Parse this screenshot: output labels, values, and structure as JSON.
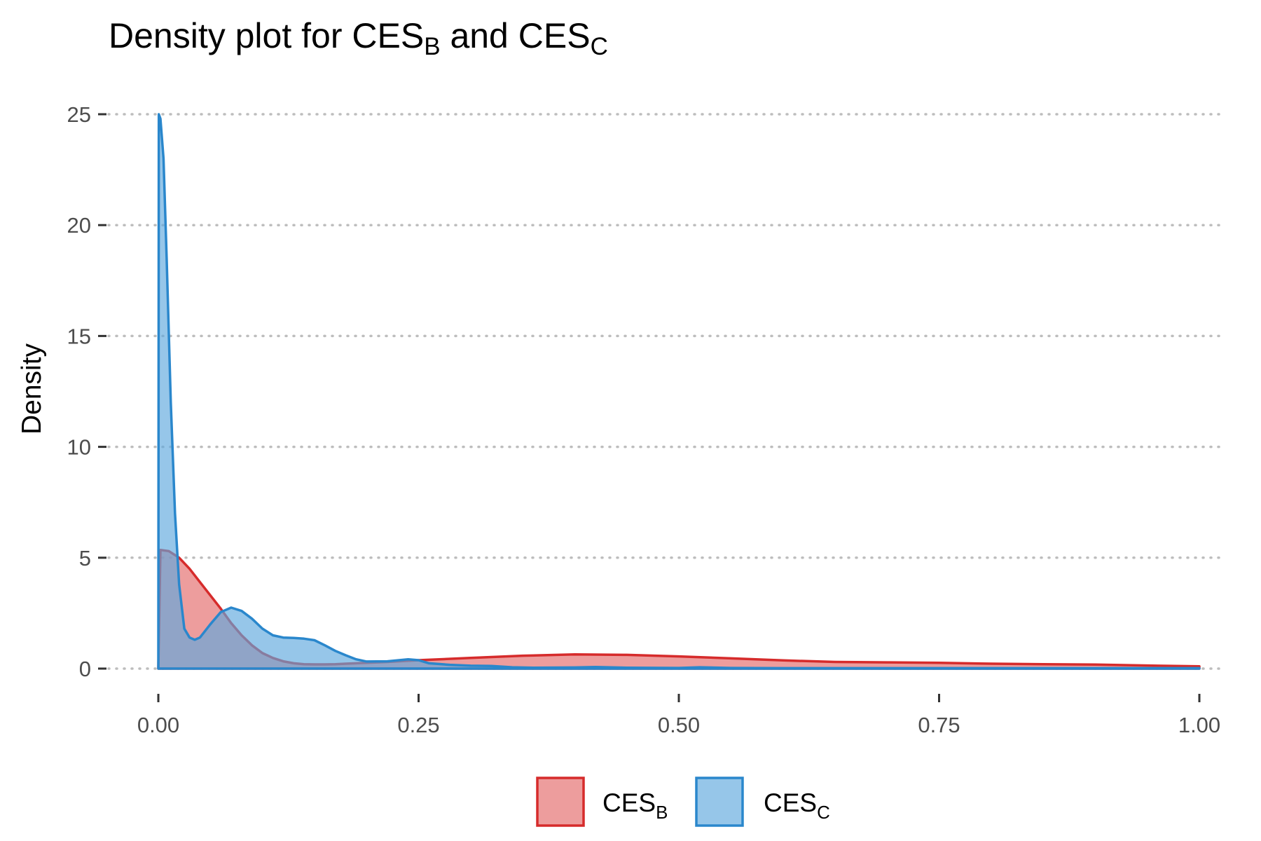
{
  "chart_data": {
    "type": "area",
    "title": {
      "prefix": "Density plot for ",
      "series1_base": "CES",
      "series1_sub": "B",
      "connector": " and ",
      "series2_base": "CES",
      "series2_sub": "C"
    },
    "xlabel": "",
    "ylabel": "Density",
    "xlim": [
      0,
      1
    ],
    "ylim": [
      0,
      25
    ],
    "x_ticks": [
      0,
      0.25,
      0.5,
      0.75,
      1.0
    ],
    "x_tick_labels": [
      "0.00",
      "0.25",
      "0.50",
      "0.75",
      "1.00"
    ],
    "y_ticks": [
      0,
      5,
      10,
      15,
      20,
      25
    ],
    "y_tick_labels": [
      "0",
      "5",
      "10",
      "15",
      "20",
      "25"
    ],
    "grid": "horizontal dotted",
    "legend_position": "bottom",
    "series": [
      {
        "name_base": "CES",
        "name_sub": "B",
        "line_color": "#d62b2b",
        "fill_color": "#e57373",
        "fill_opacity": 0.7,
        "x": [
          0,
          0.002,
          0.01,
          0.02,
          0.03,
          0.04,
          0.05,
          0.06,
          0.07,
          0.08,
          0.09,
          0.1,
          0.11,
          0.12,
          0.13,
          0.14,
          0.15,
          0.16,
          0.17,
          0.18,
          0.2,
          0.22,
          0.25,
          0.3,
          0.35,
          0.4,
          0.45,
          0.5,
          0.55,
          0.6,
          0.65,
          0.7,
          0.75,
          0.8,
          0.85,
          0.9,
          0.95,
          1.0
        ],
        "y": [
          0,
          5.35,
          5.3,
          5.0,
          4.5,
          3.9,
          3.3,
          2.7,
          2.05,
          1.5,
          1.05,
          0.7,
          0.48,
          0.33,
          0.24,
          0.2,
          0.19,
          0.19,
          0.2,
          0.22,
          0.26,
          0.3,
          0.38,
          0.48,
          0.58,
          0.64,
          0.62,
          0.55,
          0.46,
          0.37,
          0.3,
          0.28,
          0.26,
          0.22,
          0.2,
          0.18,
          0.14,
          0.1
        ]
      },
      {
        "name_base": "CES",
        "name_sub": "C",
        "line_color": "#2a87cc",
        "fill_color": "#5ea7dd",
        "fill_opacity": 0.65,
        "x": [
          0,
          0.0005,
          0.002,
          0.005,
          0.008,
          0.012,
          0.016,
          0.02,
          0.025,
          0.03,
          0.035,
          0.04,
          0.05,
          0.06,
          0.07,
          0.08,
          0.09,
          0.1,
          0.11,
          0.12,
          0.13,
          0.14,
          0.15,
          0.16,
          0.17,
          0.18,
          0.19,
          0.2,
          0.22,
          0.24,
          0.25,
          0.26,
          0.28,
          0.3,
          0.32,
          0.34,
          0.36,
          0.4,
          0.42,
          0.45,
          0.5,
          0.52,
          0.55,
          0.6,
          0.7,
          0.8,
          0.9,
          1.0
        ],
        "y": [
          0,
          25.0,
          24.8,
          23.0,
          18.5,
          12.0,
          7.0,
          3.8,
          1.8,
          1.4,
          1.3,
          1.4,
          2.0,
          2.55,
          2.75,
          2.6,
          2.25,
          1.8,
          1.5,
          1.4,
          1.38,
          1.35,
          1.28,
          1.05,
          0.8,
          0.6,
          0.42,
          0.32,
          0.33,
          0.42,
          0.38,
          0.24,
          0.17,
          0.13,
          0.12,
          0.06,
          0.04,
          0.05,
          0.07,
          0.04,
          0.03,
          0.06,
          0.03,
          0.02,
          0.02,
          0.02,
          0.02,
          0.02
        ]
      }
    ]
  }
}
